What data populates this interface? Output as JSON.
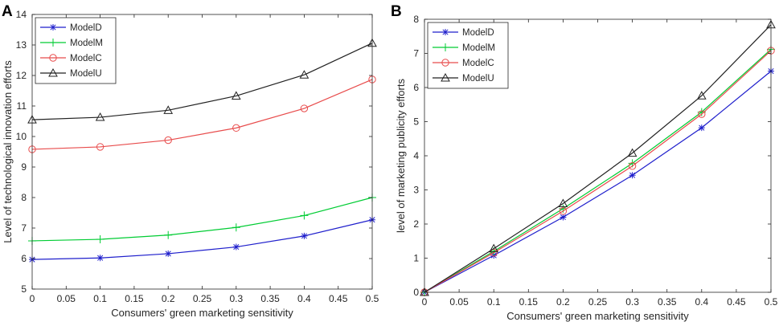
{
  "chart_data": [
    {
      "panel": "A",
      "type": "line",
      "xlabel": "Consumers' green marketing sensitivity",
      "ylabel": "Level of technological innovation efforts",
      "x": [
        0,
        0.1,
        0.2,
        0.3,
        0.4,
        0.5
      ],
      "xticks": [
        "0",
        "0.05",
        "0.1",
        "0.15",
        "0.2",
        "0.25",
        "0.3",
        "0.35",
        "0.4",
        "0.45",
        "0.5"
      ],
      "xlim": [
        0,
        0.5
      ],
      "ylim": [
        5,
        14
      ],
      "yticks": [
        "5",
        "6",
        "7",
        "8",
        "9",
        "10",
        "11",
        "12",
        "13",
        "14"
      ],
      "legend_position": "top-left",
      "series": [
        {
          "name": "ModelD",
          "color": "#1f1fcc",
          "marker": "asterisk",
          "values": [
            5.97,
            6.02,
            6.16,
            6.38,
            6.74,
            7.27
          ]
        },
        {
          "name": "ModelM",
          "color": "#00cc33",
          "marker": "plus",
          "values": [
            6.58,
            6.63,
            6.77,
            7.02,
            7.41,
            8.0
          ]
        },
        {
          "name": "ModelC",
          "color": "#e84c4c",
          "marker": "circle",
          "values": [
            9.58,
            9.66,
            9.88,
            10.28,
            10.92,
            11.87
          ]
        },
        {
          "name": "ModelU",
          "color": "#222222",
          "marker": "triangle",
          "values": [
            10.55,
            10.63,
            10.86,
            11.33,
            12.02,
            13.06
          ]
        }
      ]
    },
    {
      "panel": "B",
      "type": "line",
      "xlabel": "Consumers' green marketing sensitivity",
      "ylabel": "level of marketing publicity efforts",
      "x": [
        0,
        0.1,
        0.2,
        0.3,
        0.4,
        0.5
      ],
      "xticks": [
        "0",
        "0.05",
        "0.1",
        "0.15",
        "0.2",
        "0.25",
        "0.3",
        "0.35",
        "0.4",
        "0.45",
        "0.5"
      ],
      "xlim": [
        0,
        0.5
      ],
      "ylim": [
        0,
        8
      ],
      "yticks": [
        "0",
        "1",
        "2",
        "3",
        "4",
        "5",
        "6",
        "7",
        "8"
      ],
      "legend_position": "top-left",
      "series": [
        {
          "name": "ModelD",
          "color": "#1f1fcc",
          "marker": "asterisk",
          "values": [
            0,
            1.08,
            2.2,
            3.43,
            4.82,
            6.48
          ]
        },
        {
          "name": "ModelM",
          "color": "#00cc33",
          "marker": "plus",
          "values": [
            0,
            1.2,
            2.45,
            3.78,
            5.28,
            7.12
          ]
        },
        {
          "name": "ModelC",
          "color": "#e84c4c",
          "marker": "circle",
          "values": [
            0,
            1.16,
            2.38,
            3.7,
            5.22,
            7.08
          ]
        },
        {
          "name": "ModelU",
          "color": "#222222",
          "marker": "triangle",
          "values": [
            0,
            1.28,
            2.6,
            4.08,
            5.76,
            7.84
          ]
        }
      ]
    }
  ]
}
